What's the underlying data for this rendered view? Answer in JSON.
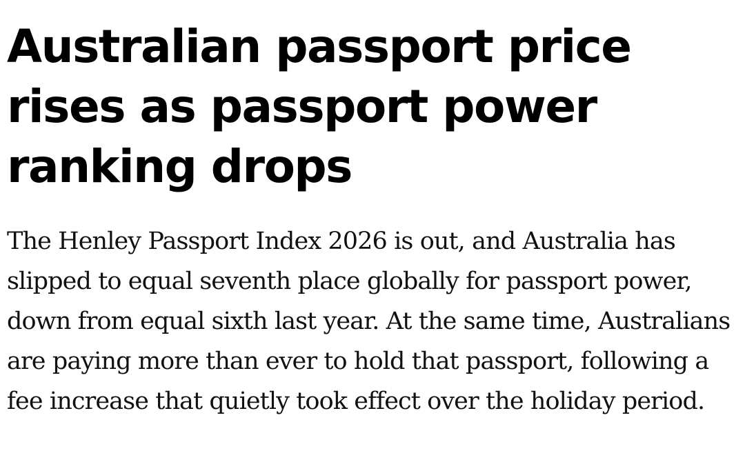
{
  "article": {
    "headline": "Australian passport price rises as passport power ranking drops",
    "standfirst": "The Henley Passport Index 2026 is out, and Australia has slipped to equal seventh place globally for passport power, down from equal sixth last year. At the same time, Australians are paying more than ever to hold that passport, following a fee increase that quietly took effect over the holiday period."
  }
}
